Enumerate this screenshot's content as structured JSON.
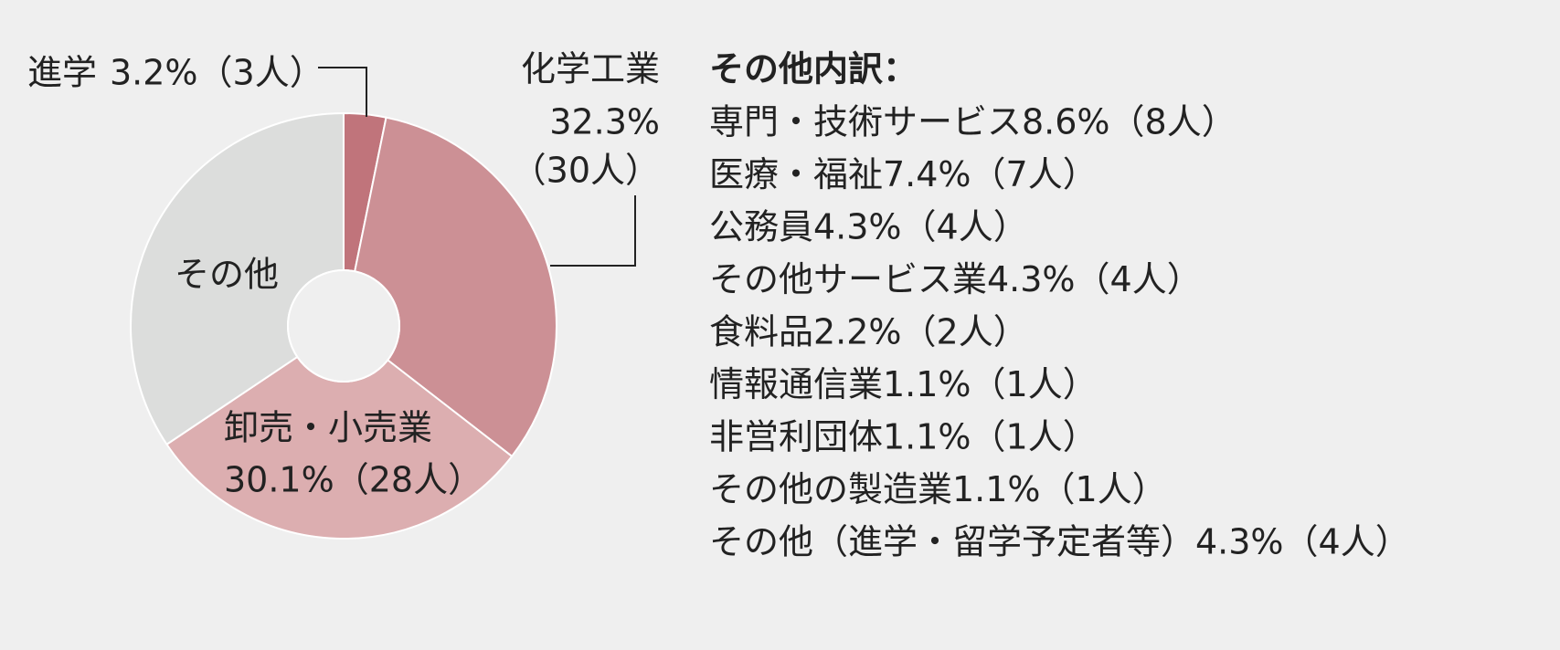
{
  "chart_data": {
    "type": "donut",
    "categories": [
      "進学",
      "化学工業",
      "卸売・小売業",
      "その他"
    ],
    "values": [
      3.2,
      32.3,
      30.1,
      34.4
    ],
    "value_labels": [
      "3.2%（3人）",
      [
        "32.3%",
        "（30人）"
      ],
      "30.1%（28人）",
      null
    ],
    "colors": [
      "#c0747b",
      "#cc9095",
      "#dcaeb0",
      "#dcdddc"
    ]
  },
  "breakdown": {
    "title": "その他内訳：",
    "items": [
      "専門・技術サービス8.6%（8人）",
      "医療・福祉7.4%（7人）",
      "公務員4.3%（4人）",
      "その他サービス業4.3%（4人）",
      "食料品2.2%（2人）",
      "情報通信業1.1%（1人）",
      "非営利団体1.1%（1人）",
      "その他の製造業1.1%（1人）",
      "その他（進学・留学予定者等）4.3%（4人）"
    ]
  }
}
